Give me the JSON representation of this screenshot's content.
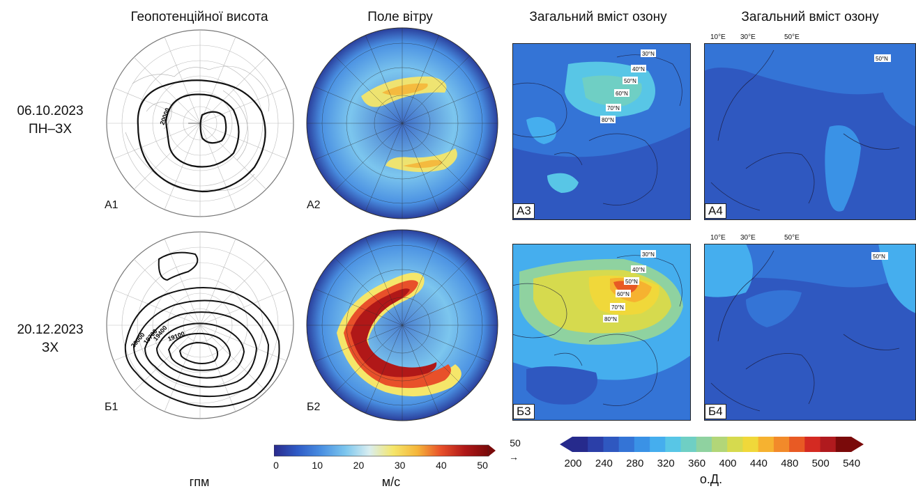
{
  "headers": {
    "geopotential": "Геопотенційної висота",
    "wind": "Поле вітру",
    "ozone_a": "Загальний вміст озону",
    "ozone_b": "Загальний вміст озону"
  },
  "rows": [
    {
      "date": "06.10.2023",
      "type": "ПН–ЗХ"
    },
    {
      "date": "20.12.2023",
      "type": "ЗХ"
    }
  ],
  "panels": {
    "a1": "А1",
    "a2": "А2",
    "a3": "А3",
    "a4": "А4",
    "b1": "Б1",
    "b2": "Б2",
    "b3": "Б3",
    "b4": "Б4"
  },
  "contours": {
    "a1": [
      "20000"
    ],
    "b1": [
      "20000",
      "19700",
      "19400",
      "19100"
    ]
  },
  "lat_labels": [
    "30°N",
    "40°N",
    "50°N",
    "60°N",
    "70°N",
    "80°N"
  ],
  "europe_lat_label": "50°N",
  "lon_labels": {
    "top": [
      "10°E",
      "30°E",
      "50°E"
    ],
    "bottom": [
      "10°E",
      "30°E",
      "50°E"
    ]
  },
  "wind_colorbar": {
    "ticks": [
      "0",
      "10",
      "20",
      "30",
      "40",
      "50"
    ],
    "range": [
      0,
      52
    ],
    "unit": "м/с",
    "vector_ref": "50",
    "colors": [
      "#2a2a8c",
      "#2f5cc7",
      "#4a90e2",
      "#7cc6ee",
      "#d9eef0",
      "#f5e66a",
      "#f5b63a",
      "#e8502a",
      "#b01818",
      "#7a0a0a"
    ]
  },
  "ozone_colorbar": {
    "ticks": [
      "200",
      "240",
      "280",
      "320",
      "360",
      "400",
      "440",
      "480",
      "500",
      "540"
    ],
    "unit": "о.Д.",
    "colors": [
      "#262a8c",
      "#2b3fa8",
      "#2f58c0",
      "#3474d6",
      "#3a92e6",
      "#45aeee",
      "#58c6e6",
      "#6fcfc4",
      "#8fd2a0",
      "#b2d678",
      "#d6da4e",
      "#f0d83a",
      "#f6b230",
      "#f28a2a",
      "#e85a24",
      "#d42a22",
      "#b01a1e",
      "#7a0a0a"
    ]
  },
  "geopotential_unit": "гпм"
}
